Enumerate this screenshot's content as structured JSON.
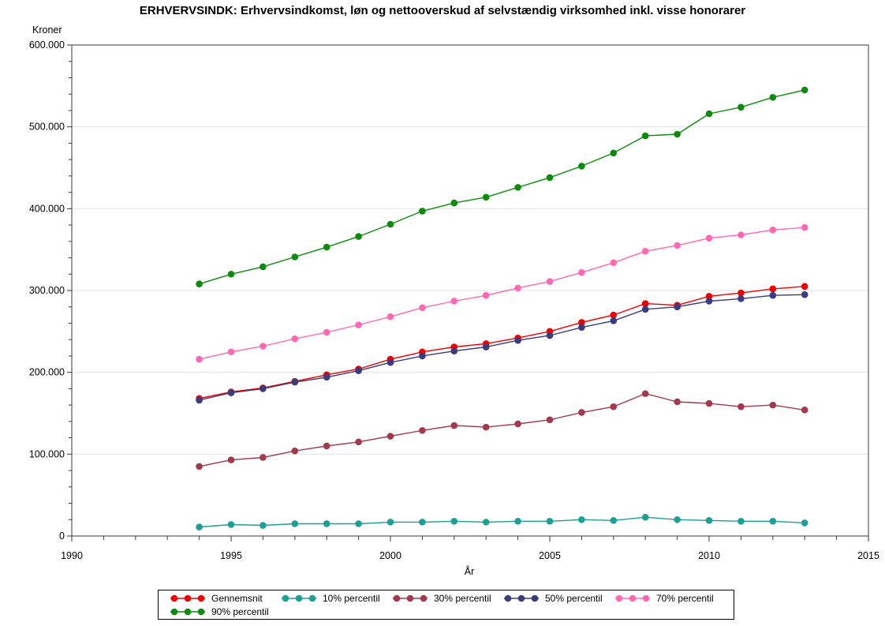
{
  "title": "ERHVERVSINDK: Erhvervsindkomst, løn og nettooverskud af selvstændig virksomhed inkl. visse honorarer",
  "chart_data": {
    "type": "line",
    "xlabel": "År",
    "ylabel": "Kroner",
    "xlim": [
      1990,
      2015
    ],
    "ylim": [
      0,
      600000
    ],
    "x_major_ticks": [
      1990,
      1995,
      2000,
      2005,
      2010,
      2015
    ],
    "x_tick_labels": [
      "1990",
      "1995",
      "2000",
      "2005",
      "2010",
      "2015"
    ],
    "x_minor_step": 1,
    "y_major_ticks": [
      0,
      100000,
      200000,
      300000,
      400000,
      500000,
      600000
    ],
    "y_tick_labels": [
      "0",
      "100.000",
      "200.000",
      "300.000",
      "400.000",
      "500.000",
      "600.000"
    ],
    "y_minor_step": 20000,
    "grid": "horizontal gridlines at major y ticks",
    "legend_position": "bottom",
    "marker": "filled circle on every point",
    "x": [
      1994,
      1995,
      1996,
      1997,
      1998,
      1999,
      2000,
      2001,
      2002,
      2003,
      2004,
      2005,
      2006,
      2007,
      2008,
      2009,
      2010,
      2011,
      2012,
      2013
    ],
    "series": [
      {
        "name": "Gennemsnit",
        "color": "#ee0000",
        "values": [
          168000,
          176000,
          181000,
          189000,
          197000,
          204000,
          216000,
          225000,
          231000,
          235000,
          242000,
          250000,
          261000,
          270000,
          284000,
          282000,
          293000,
          297000,
          302000,
          305000
        ]
      },
      {
        "name": "10% percentil",
        "color": "#1e9e94",
        "values": [
          11000,
          14000,
          13000,
          15000,
          15000,
          15000,
          17000,
          17000,
          18000,
          17000,
          18000,
          18000,
          20000,
          19000,
          23000,
          20000,
          19000,
          18000,
          18000,
          16000
        ]
      },
      {
        "name": "30% percentil",
        "color": "#a23a4f",
        "values": [
          85000,
          93000,
          96000,
          104000,
          110000,
          115000,
          122000,
          129000,
          135000,
          133000,
          137000,
          142000,
          151000,
          158000,
          174000,
          164000,
          162000,
          158000,
          160000,
          154000
        ]
      },
      {
        "name": "50% percentil",
        "color": "#3b3b7d",
        "values": [
          166000,
          175000,
          180000,
          188000,
          194000,
          202000,
          212000,
          220000,
          226000,
          231000,
          239000,
          245000,
          255000,
          263000,
          277000,
          280000,
          287000,
          290000,
          294000,
          295000
        ]
      },
      {
        "name": "70% percentil",
        "color": "#ff69b4",
        "values": [
          216000,
          225000,
          232000,
          241000,
          249000,
          258000,
          268000,
          279000,
          287000,
          294000,
          303000,
          311000,
          322000,
          334000,
          348000,
          355000,
          364000,
          368000,
          374000,
          377000
        ]
      },
      {
        "name": "90% percentil",
        "color": "#0e8a0e",
        "values": [
          308000,
          320000,
          329000,
          341000,
          353000,
          366000,
          381000,
          397000,
          407000,
          414000,
          426000,
          438000,
          452000,
          468000,
          489000,
          491000,
          516000,
          524000,
          536000,
          545000
        ]
      }
    ]
  }
}
